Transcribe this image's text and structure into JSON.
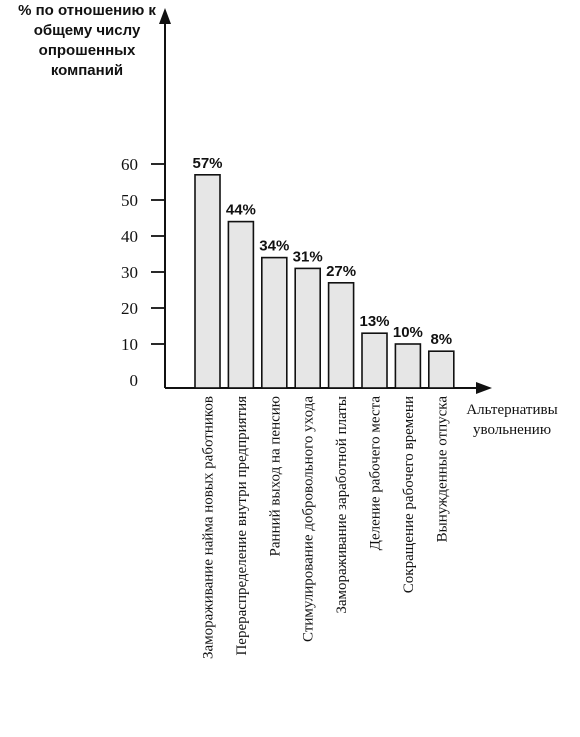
{
  "chart_data": {
    "type": "bar",
    "ylabel": [
      "% по отношению к",
      "общему числу",
      "опрошенных",
      "компаний"
    ],
    "xlabel": [
      "Альтернативы",
      "увольнению"
    ],
    "yticks": [
      0,
      10,
      20,
      30,
      40,
      50,
      60
    ],
    "categories": [
      "Замораживание найма новых работников",
      "Перераспределение внутри предприятия",
      "Ранний выход на пенсию",
      "Стимулирование добровольного ухода",
      "Замораживание заработной платы",
      "Деление рабочего места",
      "Сокращение рабочего времени",
      "Вынужденные отпуска"
    ],
    "values": [
      57,
      44,
      34,
      31,
      27,
      13,
      10,
      8
    ],
    "value_labels": [
      "57%",
      "44%",
      "34%",
      "31%",
      "27%",
      "13%",
      "10%",
      "8%"
    ],
    "bar_fill": "#e6e6e6",
    "bar_stroke": "#111111"
  }
}
